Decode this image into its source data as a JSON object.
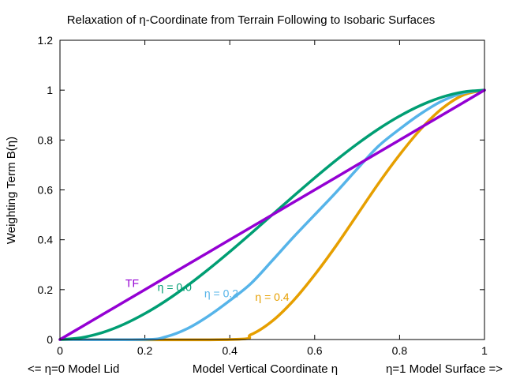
{
  "chart_data": {
    "type": "line",
    "title": "Relaxation of η-Coordinate from Terrain Following to Isobaric Surfaces",
    "xlabel": "Model Vertical Coordinate η",
    "xlabel_left": "<= η=0 Model Lid",
    "xlabel_right": "η=1 Model Surface =>",
    "ylabel": "Weighting Term B(η)",
    "xlim": [
      0,
      1
    ],
    "ylim": [
      0,
      1.2
    ],
    "xticks": [
      0,
      0.2,
      0.4,
      0.6,
      0.8,
      1
    ],
    "xtick_labels": [
      "0",
      "0.2",
      "0.4",
      "0.6",
      "0.8",
      "1"
    ],
    "yticks": [
      0,
      0.2,
      0.4,
      0.6,
      0.8,
      1,
      1.2
    ],
    "ytick_labels": [
      "0",
      "0.2",
      "0.4",
      "0.6",
      "0.8",
      "1",
      "1.2"
    ],
    "grid": false,
    "series": [
      {
        "name": "TF",
        "color": "#9400D3",
        "label_at": [
          0.17,
          0.21
        ],
        "x": [
          0,
          0.05,
          0.1,
          0.15,
          0.2,
          0.25,
          0.3,
          0.35,
          0.4,
          0.45,
          0.5,
          0.55,
          0.6,
          0.65,
          0.7,
          0.75,
          0.8,
          0.85,
          0.9,
          0.95,
          1
        ],
        "values": [
          0,
          0.05,
          0.1,
          0.15,
          0.2,
          0.25,
          0.3,
          0.35,
          0.4,
          0.45,
          0.5,
          0.55,
          0.6,
          0.65,
          0.7,
          0.75,
          0.8,
          0.85,
          0.9,
          0.95,
          1
        ]
      },
      {
        "name": "η = 0.0",
        "color": "#009E73",
        "label_at": [
          0.27,
          0.195
        ],
        "x": [
          0,
          0.05,
          0.1,
          0.15,
          0.2,
          0.25,
          0.3,
          0.35,
          0.4,
          0.45,
          0.5,
          0.55,
          0.6,
          0.65,
          0.7,
          0.75,
          0.8,
          0.85,
          0.9,
          0.95,
          1
        ],
        "values": [
          0,
          0.0073,
          0.028,
          0.0608,
          0.104,
          0.156,
          0.216,
          0.2818,
          0.352,
          0.4253,
          0.5,
          0.5748,
          0.648,
          0.7183,
          0.784,
          0.8438,
          0.896,
          0.9393,
          0.972,
          0.9928,
          1
        ]
      },
      {
        "name": "η = 0.2",
        "color": "#56B4E9",
        "label_at": [
          0.38,
          0.17
        ],
        "x": [
          0,
          0.2,
          0.25,
          0.3,
          0.35,
          0.4,
          0.45,
          0.5,
          0.55,
          0.6,
          0.65,
          0.7,
          0.75,
          0.8,
          0.85,
          0.9,
          0.95,
          1
        ],
        "values": [
          0,
          0,
          0.0114,
          0.0438,
          0.0945,
          0.1563,
          0.2249,
          0.3164,
          0.4105,
          0.5,
          0.5895,
          0.6836,
          0.7751,
          0.8438,
          0.9055,
          0.9563,
          0.9886,
          1
        ]
      },
      {
        "name": "η = 0.4",
        "color": "#E69F00",
        "label_at": [
          0.5,
          0.155
        ],
        "x": [
          0,
          0.4,
          0.45,
          0.5,
          0.55,
          0.6,
          0.65,
          0.7,
          0.75,
          0.8,
          0.85,
          0.9,
          0.95,
          1
        ],
        "values": [
          0,
          0,
          0.0197,
          0.074,
          0.1563,
          0.2593,
          0.375,
          0.5,
          0.625,
          0.7407,
          0.8438,
          0.926,
          0.9803,
          1
        ]
      }
    ]
  }
}
